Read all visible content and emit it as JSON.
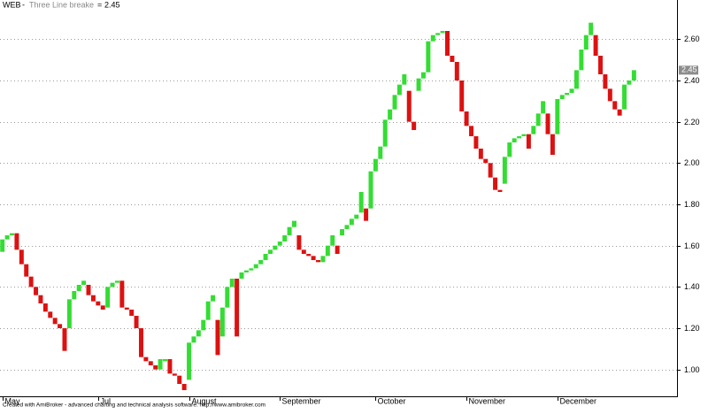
{
  "chart_data": {
    "type": "line_break",
    "ticker": "WEB",
    "title": "Three Line breake",
    "last_value": 2.45,
    "footer": "Created with AmiBroker - advanced charting and technical analysis software. http://www.amibroker.com",
    "up_color": "#33dd33",
    "down_color": "#dd1111",
    "open": [
      1.57,
      1.63,
      1.65,
      1.66,
      1.58,
      1.51,
      1.45,
      1.4,
      1.36,
      1.32,
      1.28,
      1.25,
      1.22,
      1.2,
      1.2,
      1.34,
      1.38,
      1.41,
      1.41,
      1.36,
      1.33,
      1.31,
      1.3,
      1.4,
      1.42,
      1.43,
      1.3,
      1.29,
      1.26,
      1.2,
      1.06,
      1.04,
      1.02,
      1.0,
      1.04,
      1.05,
      0.98,
      0.97,
      0.93,
      0.95,
      1.13,
      1.16,
      1.19,
      1.24,
      1.33,
      1.24,
      1.16,
      1.3,
      1.4,
      1.44,
      1.44,
      1.47,
      1.48,
      1.49,
      1.51,
      1.53,
      1.56,
      1.58,
      1.6,
      1.62,
      1.65,
      1.69,
      1.65,
      1.58,
      1.56,
      1.55,
      1.53,
      1.52,
      1.55,
      1.6,
      1.6,
      1.65,
      1.68,
      1.7,
      1.73,
      1.76,
      1.78,
      1.78,
      1.96,
      2.02,
      2.08,
      2.21,
      2.26,
      2.33,
      2.38,
      2.35,
      2.2,
      2.35,
      2.41,
      2.44,
      2.59,
      2.62,
      2.63,
      2.64,
      2.52,
      2.49,
      2.4,
      2.25,
      2.18,
      2.13,
      2.07,
      2.02,
      2.0,
      1.93,
      1.87,
      1.9,
      2.03,
      2.1,
      2.12,
      2.13,
      2.14,
      2.14,
      2.18,
      2.24,
      2.24,
      2.14,
      2.14,
      2.31,
      2.33,
      2.34,
      2.36,
      2.45,
      2.55,
      2.62,
      2.62,
      2.52,
      2.43,
      2.36,
      2.3,
      2.26,
      2.26,
      2.38,
      2.4
    ],
    "close": [
      1.63,
      1.65,
      1.66,
      1.58,
      1.51,
      1.45,
      1.4,
      1.36,
      1.32,
      1.28,
      1.25,
      1.22,
      1.2,
      1.09,
      1.34,
      1.38,
      1.41,
      1.43,
      1.36,
      1.33,
      1.31,
      1.29,
      1.4,
      1.42,
      1.43,
      1.3,
      1.29,
      1.26,
      1.2,
      1.06,
      1.04,
      1.02,
      1.0,
      1.05,
      1.05,
      0.98,
      0.97,
      0.93,
      0.9,
      1.13,
      1.16,
      1.19,
      1.24,
      1.33,
      1.36,
      1.07,
      1.3,
      1.4,
      1.44,
      1.16,
      1.47,
      1.48,
      1.49,
      1.51,
      1.53,
      1.56,
      1.58,
      1.6,
      1.62,
      1.65,
      1.69,
      1.72,
      1.58,
      1.56,
      1.55,
      1.53,
      1.52,
      1.55,
      1.6,
      1.65,
      1.56,
      1.68,
      1.7,
      1.73,
      1.75,
      1.86,
      1.72,
      1.96,
      2.02,
      2.08,
      2.21,
      2.26,
      2.33,
      2.38,
      2.43,
      2.2,
      2.16,
      2.41,
      2.44,
      2.59,
      2.62,
      2.63,
      2.64,
      2.52,
      2.49,
      2.4,
      2.25,
      2.18,
      2.13,
      2.07,
      2.02,
      2.0,
      1.93,
      1.87,
      1.86,
      2.03,
      2.1,
      2.12,
      2.13,
      2.14,
      2.07,
      2.18,
      2.24,
      2.3,
      2.14,
      2.04,
      2.31,
      2.33,
      2.34,
      2.36,
      2.45,
      2.55,
      2.62,
      2.68,
      2.52,
      2.43,
      2.36,
      2.3,
      2.26,
      2.23,
      2.38,
      2.4,
      2.45
    ],
    "xlim": [
      -0.5,
      141
    ],
    "xticks": [
      {
        "value": 0,
        "label": "May"
      },
      {
        "value": 20,
        "label": "Jul"
      },
      {
        "value": 39,
        "label": "August"
      },
      {
        "value": 58,
        "label": "September"
      },
      {
        "value": 78,
        "label": "October"
      },
      {
        "value": 97,
        "label": "November"
      },
      {
        "value": 116,
        "label": "December"
      }
    ],
    "ylim": [
      0.87,
      2.79
    ],
    "yticks": [
      {
        "value": 1.0,
        "label": "1.00"
      },
      {
        "value": 1.2,
        "label": "1.20"
      },
      {
        "value": 1.4,
        "label": "1.40"
      },
      {
        "value": 1.6,
        "label": "1.60"
      },
      {
        "value": 1.8,
        "label": "1.80"
      },
      {
        "value": 2.0,
        "label": "2.00"
      },
      {
        "value": 2.2,
        "label": "2.20"
      },
      {
        "value": 2.4,
        "label": "2.40"
      },
      {
        "value": 2.6,
        "label": "2.60"
      }
    ],
    "grid": true
  }
}
